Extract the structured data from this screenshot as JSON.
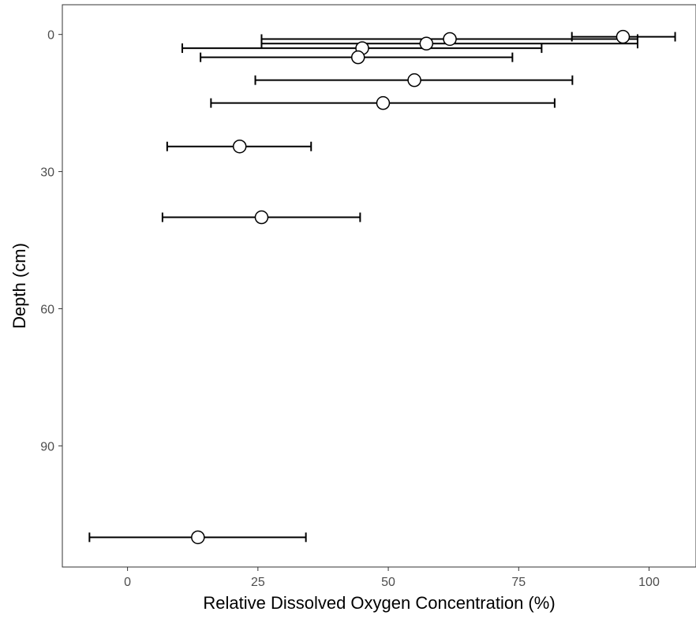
{
  "chart_data": {
    "type": "scatter",
    "title": "",
    "xlabel": "Relative Dissolved Oxygen Concentration (%)",
    "ylabel": "Depth (cm)",
    "xlim": [
      -12.5,
      109
    ],
    "ylim": [
      -6.5,
      116.5
    ],
    "y_reversed": true,
    "x_ticks": [
      0,
      25,
      50,
      75,
      100
    ],
    "x_tick_labels": [
      "0",
      "25",
      "50",
      "75",
      "100"
    ],
    "y_ticks": [
      0,
      30,
      60,
      90
    ],
    "y_tick_labels": [
      "0",
      "30",
      "60",
      "90"
    ],
    "grid": false,
    "legend": "none",
    "error_bars": "horizontal",
    "points": [
      {
        "x": 95.0,
        "y": 0.5,
        "xmin": 85.2,
        "xmax": 105.0
      },
      {
        "x": 61.8,
        "y": 1.0,
        "xmin": 25.7,
        "xmax": 97.8
      },
      {
        "x": 57.3,
        "y": 2.0,
        "xmin": 25.7,
        "xmax": 97.8
      },
      {
        "x": 45.0,
        "y": 3.0,
        "xmin": 10.5,
        "xmax": 79.4
      },
      {
        "x": 44.2,
        "y": 5.0,
        "xmin": 14.0,
        "xmax": 73.8
      },
      {
        "x": 55.0,
        "y": 10.0,
        "xmin": 24.5,
        "xmax": 85.3
      },
      {
        "x": 49.0,
        "y": 15.0,
        "xmin": 16.0,
        "xmax": 81.9
      },
      {
        "x": 21.5,
        "y": 24.5,
        "xmin": 7.6,
        "xmax": 35.2
      },
      {
        "x": 25.7,
        "y": 40.0,
        "xmin": 6.7,
        "xmax": 44.6
      },
      {
        "x": 13.5,
        "y": 110.0,
        "xmin": -7.3,
        "xmax": 34.2
      }
    ],
    "colors": {
      "point_fill": "#ffffff",
      "point_stroke": "#000000",
      "error_bar": "#000000",
      "axis": "#333333",
      "tick_label": "#4d4d4d"
    }
  }
}
